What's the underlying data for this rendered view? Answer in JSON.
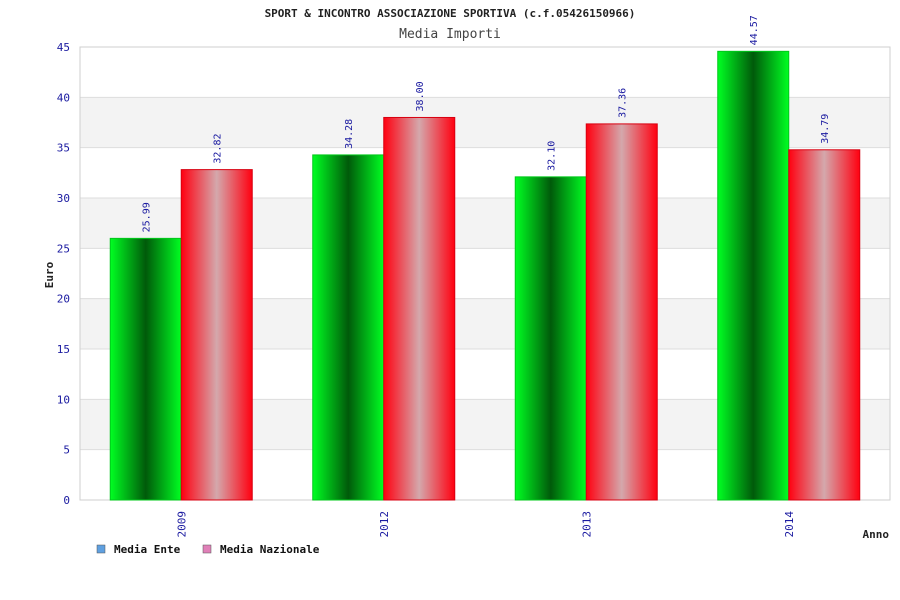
{
  "chart_data": {
    "type": "bar",
    "title": "SPORT & INCONTRO ASSOCIAZIONE SPORTIVA (c.f.05426150966)",
    "subtitle": "Media Importi",
    "xlabel": "Anno",
    "ylabel": "Euro",
    "categories": [
      "2009",
      "2012",
      "2013",
      "2014"
    ],
    "series": [
      {
        "name": "Media Ente",
        "values": [
          25.99,
          34.28,
          32.1,
          44.57
        ],
        "color": "#00ee22",
        "legend_color": "#5fa0e0"
      },
      {
        "name": "Media Nazionale",
        "values": [
          32.82,
          38.0,
          37.36,
          34.79
        ],
        "color": "#ff1020",
        "legend_color": "#e080b8"
      }
    ],
    "data_labels": [
      [
        "25.99",
        "34.28",
        "32.10",
        "44.57"
      ],
      [
        "32.82",
        "38.00",
        "37.36",
        "34.79"
      ]
    ],
    "yticks": [
      0,
      5,
      10,
      15,
      20,
      25,
      30,
      35,
      40,
      45
    ],
    "ylim": [
      0,
      45
    ],
    "grid": true,
    "legend_position": "bottom-left"
  }
}
